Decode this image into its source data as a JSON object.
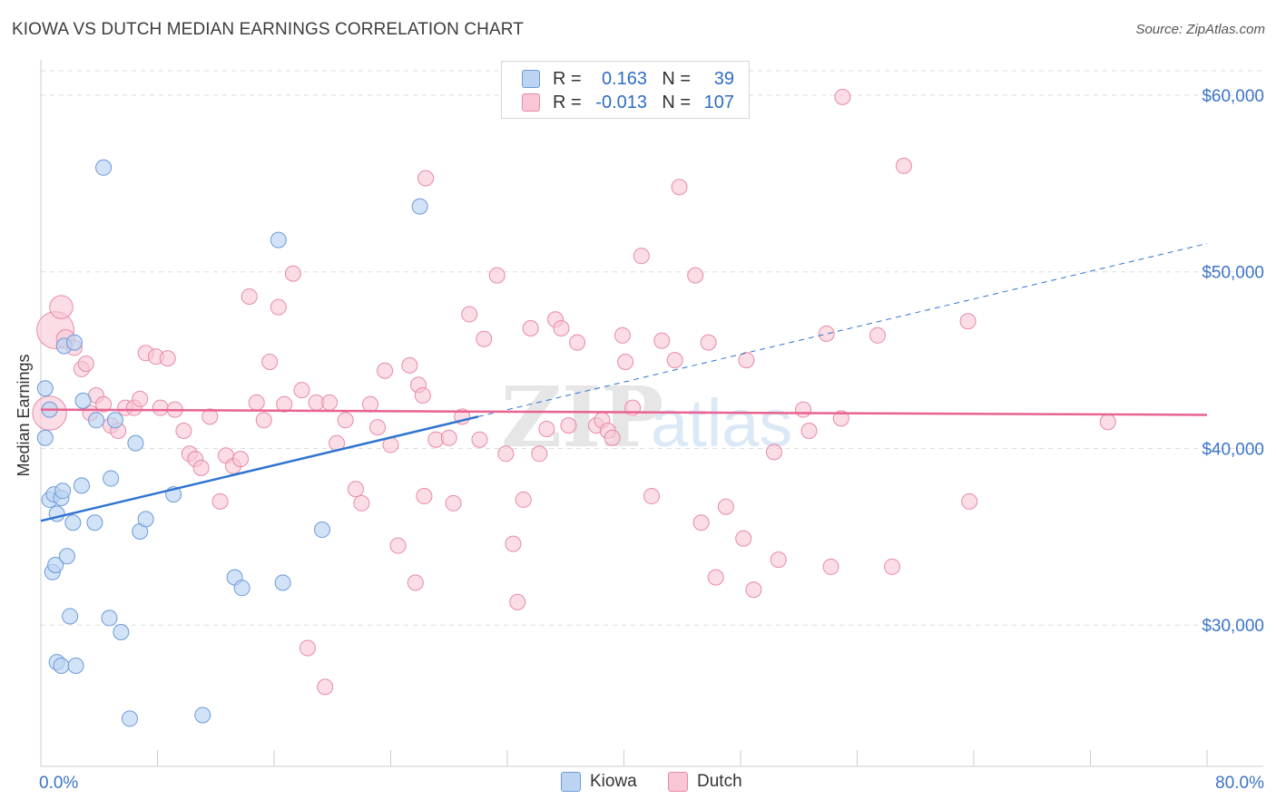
{
  "title": "KIOWA VS DUTCH MEDIAN EARNINGS CORRELATION CHART",
  "source": "Source: ZipAtlas.com",
  "legend": {
    "rows": [
      {
        "r_label": "R =",
        "r_value": "0.163",
        "n_label": "N =",
        "n_value": "39"
      },
      {
        "r_label": "R =",
        "r_value": "-0.013",
        "n_label": "N =",
        "n_value": "107"
      }
    ]
  },
  "bottom_legend": {
    "kiowa": "Kiowa",
    "dutch": "Dutch"
  },
  "colors": {
    "kiowa_fill": "#bcd4f2",
    "kiowa_stroke": "#6a9ad8",
    "kiowa_line": "#2f74d0",
    "dutch_fill": "#f8c6d5",
    "dutch_stroke": "#e88aa8",
    "dutch_line": "#e8638f",
    "axis_label": "#3b74c8",
    "grid": "#dddddd"
  },
  "chart_data": {
    "type": "scatter",
    "title": "KIOWA VS DUTCH MEDIAN EARNINGS CORRELATION CHART",
    "xlabel": "",
    "ylabel": "Median Earnings",
    "xlim": [
      0,
      80
    ],
    "ylim": [
      22000,
      62000
    ],
    "x_tick_labels": [
      "0.0%",
      "80.0%"
    ],
    "y_ticks": [
      30000,
      40000,
      50000,
      60000
    ],
    "y_tick_labels": [
      "$30,000",
      "$40,000",
      "$50,000",
      "$60,000"
    ],
    "watermark": {
      "zip": "ZIP",
      "atlas": "atlas"
    },
    "series": [
      {
        "name": "Kiowa",
        "r": 0.163,
        "n": 39,
        "points": [
          [
            0.3,
            43400,
            1
          ],
          [
            0.3,
            40600,
            1
          ],
          [
            0.6,
            42200,
            1
          ],
          [
            0.6,
            37100,
            1
          ],
          [
            0.8,
            33000,
            1
          ],
          [
            0.9,
            37400,
            1
          ],
          [
            1.0,
            33400,
            1
          ],
          [
            1.1,
            36300,
            1
          ],
          [
            1.1,
            27900,
            1
          ],
          [
            1.4,
            27700,
            1
          ],
          [
            1.4,
            37200,
            1
          ],
          [
            1.5,
            37600,
            1
          ],
          [
            1.6,
            45800,
            1
          ],
          [
            1.8,
            33900,
            1
          ],
          [
            2.0,
            30500,
            1
          ],
          [
            2.2,
            35800,
            1
          ],
          [
            2.3,
            46000,
            1
          ],
          [
            2.4,
            27700,
            1
          ],
          [
            2.8,
            37900,
            1
          ],
          [
            2.9,
            42700,
            1
          ],
          [
            3.7,
            35800,
            1
          ],
          [
            3.8,
            41600,
            1
          ],
          [
            4.7,
            30400,
            1
          ],
          [
            4.8,
            38300,
            1
          ],
          [
            5.1,
            41600,
            1
          ],
          [
            5.5,
            29600,
            1
          ],
          [
            6.1,
            24700,
            1
          ],
          [
            6.5,
            40300,
            1
          ],
          [
            6.8,
            35300,
            1
          ],
          [
            7.2,
            36000,
            1
          ],
          [
            9.1,
            37400,
            1
          ],
          [
            11.1,
            24900,
            1
          ],
          [
            13.3,
            32700,
            1
          ],
          [
            13.8,
            32100,
            1
          ],
          [
            16.3,
            51800,
            1
          ],
          [
            16.6,
            32400,
            1
          ],
          [
            19.3,
            35400,
            1
          ],
          [
            26.0,
            53700,
            1
          ],
          [
            4.3,
            55900,
            1
          ]
        ],
        "trend": {
          "x0": 0,
          "y0": 35900,
          "x1": 30,
          "y1": 41800,
          "dash_x1": 80,
          "dash_y1": 51600
        }
      },
      {
        "name": "Dutch",
        "r": -0.013,
        "n": 107,
        "points": [
          [
            0.6,
            42000,
            2.2
          ],
          [
            1.0,
            46700,
            2.4
          ],
          [
            1.4,
            48000,
            1.5
          ],
          [
            1.7,
            46200,
            1.2
          ],
          [
            2.3,
            45700,
            1
          ],
          [
            2.8,
            44500,
            1
          ],
          [
            3.1,
            44800,
            1
          ],
          [
            3.4,
            42000,
            1
          ],
          [
            3.8,
            43000,
            1
          ],
          [
            4.3,
            42500,
            1
          ],
          [
            4.8,
            41300,
            1
          ],
          [
            5.3,
            41000,
            1
          ],
          [
            5.8,
            42300,
            1
          ],
          [
            6.4,
            42300,
            1
          ],
          [
            6.8,
            42800,
            1
          ],
          [
            7.2,
            45400,
            1
          ],
          [
            7.9,
            45200,
            1
          ],
          [
            8.2,
            42300,
            1
          ],
          [
            8.7,
            45100,
            1
          ],
          [
            9.2,
            42200,
            1
          ],
          [
            9.8,
            41000,
            1
          ],
          [
            10.2,
            39700,
            1
          ],
          [
            10.6,
            39400,
            1
          ],
          [
            11.0,
            38900,
            1
          ],
          [
            11.6,
            41800,
            1
          ],
          [
            12.3,
            37000,
            1
          ],
          [
            12.7,
            39600,
            1
          ],
          [
            13.2,
            39000,
            1
          ],
          [
            13.7,
            39400,
            1
          ],
          [
            14.3,
            48600,
            1
          ],
          [
            14.8,
            42600,
            1
          ],
          [
            15.3,
            41600,
            1
          ],
          [
            15.7,
            44900,
            1
          ],
          [
            16.3,
            48000,
            1
          ],
          [
            16.7,
            42500,
            1
          ],
          [
            17.3,
            49900,
            1
          ],
          [
            17.9,
            43300,
            1
          ],
          [
            18.3,
            28700,
            1
          ],
          [
            18.9,
            42600,
            1
          ],
          [
            19.5,
            26500,
            1
          ],
          [
            19.8,
            42600,
            1
          ],
          [
            20.3,
            40300,
            1
          ],
          [
            20.9,
            41600,
            1
          ],
          [
            21.6,
            37700,
            1
          ],
          [
            22.0,
            36900,
            1
          ],
          [
            22.6,
            42500,
            1
          ],
          [
            23.1,
            41200,
            1
          ],
          [
            23.6,
            44400,
            1
          ],
          [
            24.0,
            40200,
            1
          ],
          [
            24.5,
            34500,
            1
          ],
          [
            25.3,
            44700,
            1
          ],
          [
            25.7,
            32400,
            1
          ],
          [
            25.9,
            43600,
            1
          ],
          [
            26.2,
            43000,
            1
          ],
          [
            26.3,
            37300,
            1
          ],
          [
            26.4,
            55300,
            1
          ],
          [
            27.1,
            40500,
            1
          ],
          [
            28.0,
            40600,
            1
          ],
          [
            28.3,
            36900,
            1
          ],
          [
            28.9,
            41800,
            1
          ],
          [
            29.4,
            47600,
            1
          ],
          [
            30.1,
            40500,
            1
          ],
          [
            30.4,
            46200,
            1
          ],
          [
            31.3,
            49800,
            1
          ],
          [
            31.9,
            39700,
            1
          ],
          [
            32.4,
            34600,
            1
          ],
          [
            32.7,
            31300,
            1
          ],
          [
            33.1,
            37100,
            1
          ],
          [
            33.6,
            46800,
            1
          ],
          [
            34.2,
            39700,
            1
          ],
          [
            34.7,
            41100,
            1
          ],
          [
            35.3,
            47300,
            1
          ],
          [
            35.7,
            46800,
            1
          ],
          [
            36.2,
            41300,
            1
          ],
          [
            36.8,
            46000,
            1
          ],
          [
            38.1,
            41300,
            1
          ],
          [
            38.5,
            41600,
            1
          ],
          [
            38.9,
            41000,
            1
          ],
          [
            39.2,
            40600,
            1
          ],
          [
            39.9,
            46400,
            1
          ],
          [
            40.1,
            44900,
            1
          ],
          [
            40.6,
            42300,
            1
          ],
          [
            41.2,
            50900,
            1
          ],
          [
            41.9,
            37300,
            1
          ],
          [
            42.6,
            46100,
            1
          ],
          [
            43.5,
            45000,
            1
          ],
          [
            43.8,
            54800,
            1
          ],
          [
            44.9,
            49800,
            1
          ],
          [
            45.3,
            35800,
            1
          ],
          [
            45.8,
            46000,
            1
          ],
          [
            46.3,
            32700,
            1
          ],
          [
            47.0,
            36700,
            1
          ],
          [
            48.2,
            34900,
            1
          ],
          [
            48.4,
            45000,
            1
          ],
          [
            48.9,
            32000,
            1
          ],
          [
            50.3,
            39800,
            1
          ],
          [
            50.6,
            33700,
            1
          ],
          [
            52.3,
            42200,
            1
          ],
          [
            52.7,
            41000,
            1
          ],
          [
            53.9,
            46500,
            1
          ],
          [
            54.2,
            33300,
            1
          ],
          [
            54.9,
            41700,
            1
          ],
          [
            57.4,
            46400,
            1
          ],
          [
            58.4,
            33300,
            1
          ],
          [
            59.2,
            56000,
            1
          ],
          [
            63.6,
            47200,
            1
          ],
          [
            63.7,
            37000,
            1
          ],
          [
            73.2,
            41500,
            1
          ],
          [
            55.0,
            59900,
            1
          ]
        ],
        "trend": {
          "x0": 0,
          "y0": 42200,
          "x1": 80,
          "y1": 41900
        }
      }
    ]
  }
}
